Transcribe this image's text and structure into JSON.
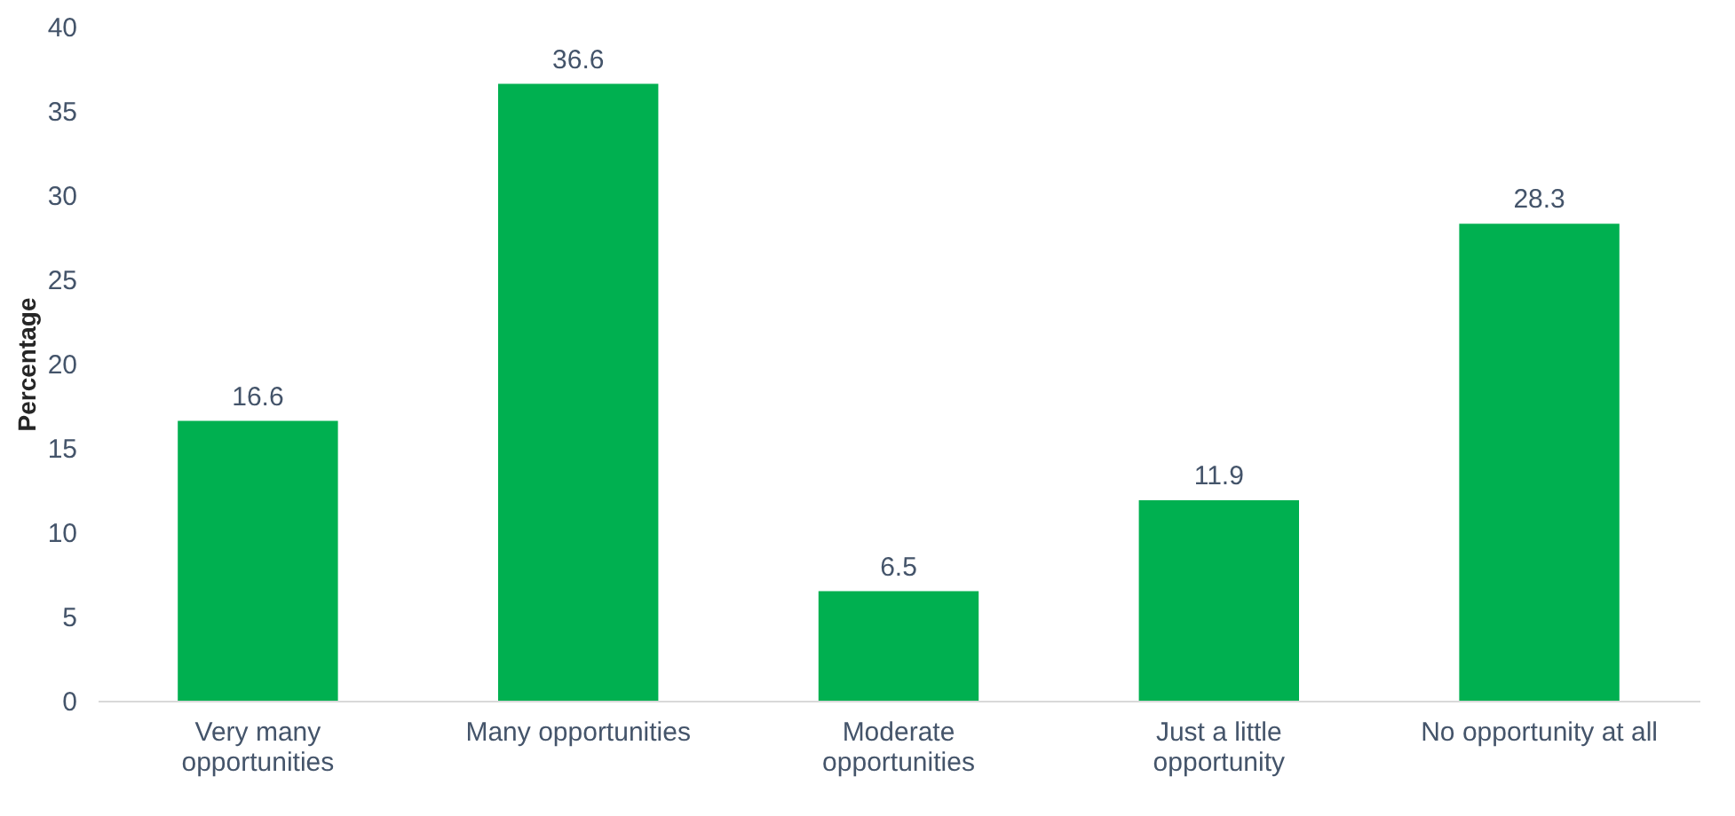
{
  "chart_data": {
    "type": "bar",
    "ylabel": "Percentage",
    "categories": [
      "Very many opportunities",
      "Many opportunities",
      "Moderate opportunities",
      "Just a little opportunity",
      "No opportunity at all"
    ],
    "values": [
      16.6,
      36.6,
      6.5,
      11.9,
      28.3
    ],
    "color": "#00b050",
    "ylim": [
      0,
      40
    ],
    "yticks": [
      0,
      5,
      10,
      15,
      20,
      25,
      30,
      35,
      40
    ],
    "grid": false,
    "data_labels": true
  }
}
